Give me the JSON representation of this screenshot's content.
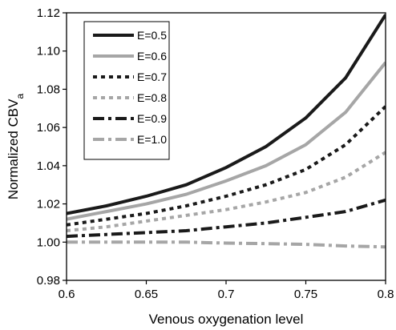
{
  "chart_data": {
    "type": "line",
    "xlabel": "Venous oxygenation level",
    "ylabel_main": "Normalized CBV",
    "ylabel_sub": "a",
    "xlim": [
      0.6,
      0.8
    ],
    "ylim": [
      0.98,
      1.12
    ],
    "xticks": [
      "0.6",
      "0.65",
      "0.7",
      "0.75",
      "0.8"
    ],
    "yticks": [
      "0.98",
      "1.00",
      "1.02",
      "1.04",
      "1.06",
      "1.08",
      "1.10",
      "1.12"
    ],
    "grid": false,
    "legend_position": "top-left",
    "x": [
      0.6,
      0.625,
      0.65,
      0.675,
      0.7,
      0.725,
      0.75,
      0.775,
      0.8
    ],
    "series": [
      {
        "name": "E=0.5",
        "color": "#1a1a1a",
        "dash": "solid",
        "values": [
          1.015,
          1.019,
          1.024,
          1.03,
          1.039,
          1.05,
          1.065,
          1.086,
          1.119
        ]
      },
      {
        "name": "E=0.6",
        "color": "#a6a6a6",
        "dash": "solid",
        "values": [
          1.012,
          1.016,
          1.02,
          1.025,
          1.032,
          1.04,
          1.051,
          1.068,
          1.094
        ]
      },
      {
        "name": "E=0.7",
        "color": "#1a1a1a",
        "dash": "dot",
        "values": [
          1.009,
          1.012,
          1.015,
          1.019,
          1.024,
          1.03,
          1.038,
          1.051,
          1.071
        ]
      },
      {
        "name": "E=0.8",
        "color": "#a6a6a6",
        "dash": "dot",
        "values": [
          1.006,
          1.008,
          1.011,
          1.014,
          1.017,
          1.021,
          1.026,
          1.034,
          1.047
        ]
      },
      {
        "name": "E=0.9",
        "color": "#1a1a1a",
        "dash": "dashdot",
        "values": [
          1.003,
          1.004,
          1.005,
          1.006,
          1.008,
          1.01,
          1.013,
          1.016,
          1.022
        ]
      },
      {
        "name": "E=1.0",
        "color": "#a6a6a6",
        "dash": "dashdot",
        "values": [
          1.0,
          1.0,
          1.0,
          1.0,
          0.9995,
          0.9992,
          0.9988,
          0.998,
          0.9975
        ]
      }
    ]
  }
}
